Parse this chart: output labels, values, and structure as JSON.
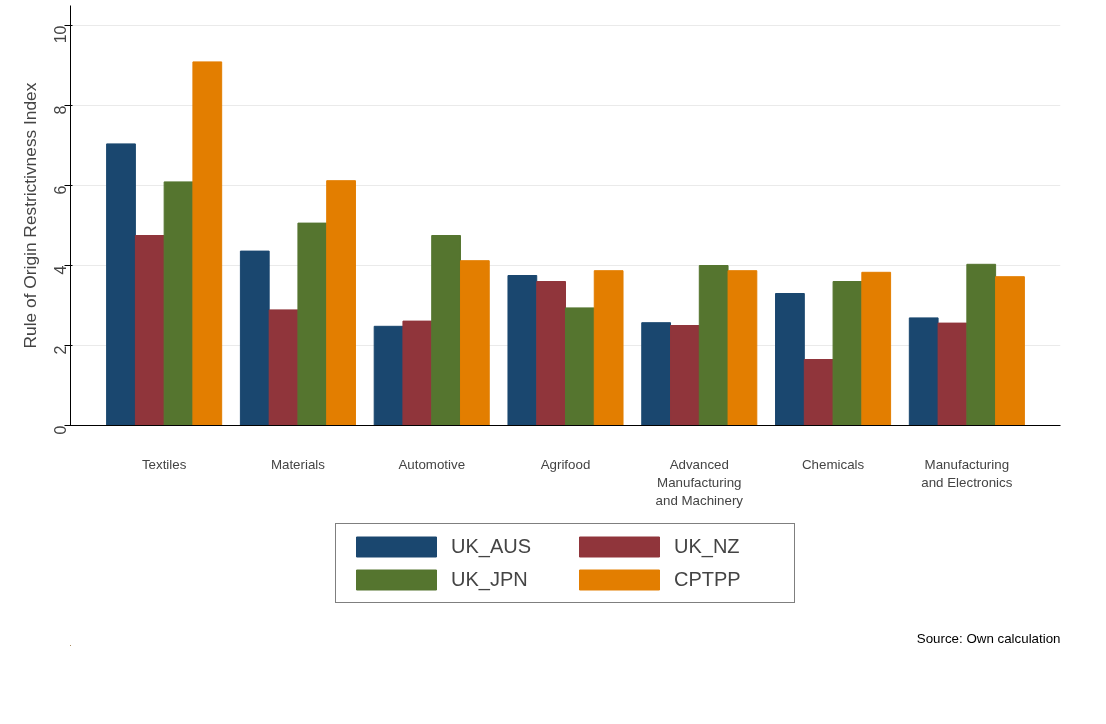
{
  "chart_data": {
    "type": "bar",
    "ylabel": "Rule of Origin Restrictivness Index",
    "categories": [
      "Textiles",
      "Materials",
      "Automotive",
      "Agrifood",
      "Advanced Manufacturing and Machinery",
      "Chemicals",
      "Manufacturing and Electronics"
    ],
    "series": [
      {
        "name": "UK_AUS",
        "color": "#1a476f",
        "values": [
          7.04,
          4.36,
          2.48,
          3.75,
          2.57,
          3.3,
          2.69
        ]
      },
      {
        "name": "UK_NZ",
        "color": "#90353b",
        "values": [
          4.75,
          2.89,
          2.61,
          3.6,
          2.5,
          1.65,
          2.56
        ]
      },
      {
        "name": "UK_JPN",
        "color": "#55752f",
        "values": [
          6.09,
          5.06,
          4.75,
          2.94,
          4.0,
          3.6,
          4.03
        ]
      },
      {
        "name": "CPTPP",
        "color": "#e37e00",
        "values": [
          9.09,
          6.12,
          4.12,
          3.87,
          3.87,
          3.83,
          3.72
        ]
      }
    ],
    "ylim": [
      0,
      10.5
    ],
    "yticks": [
      0,
      2,
      4,
      6,
      8,
      10
    ],
    "grid": "y",
    "legend": "bottom",
    "annotations": [
      "Source: Own calculation"
    ]
  }
}
